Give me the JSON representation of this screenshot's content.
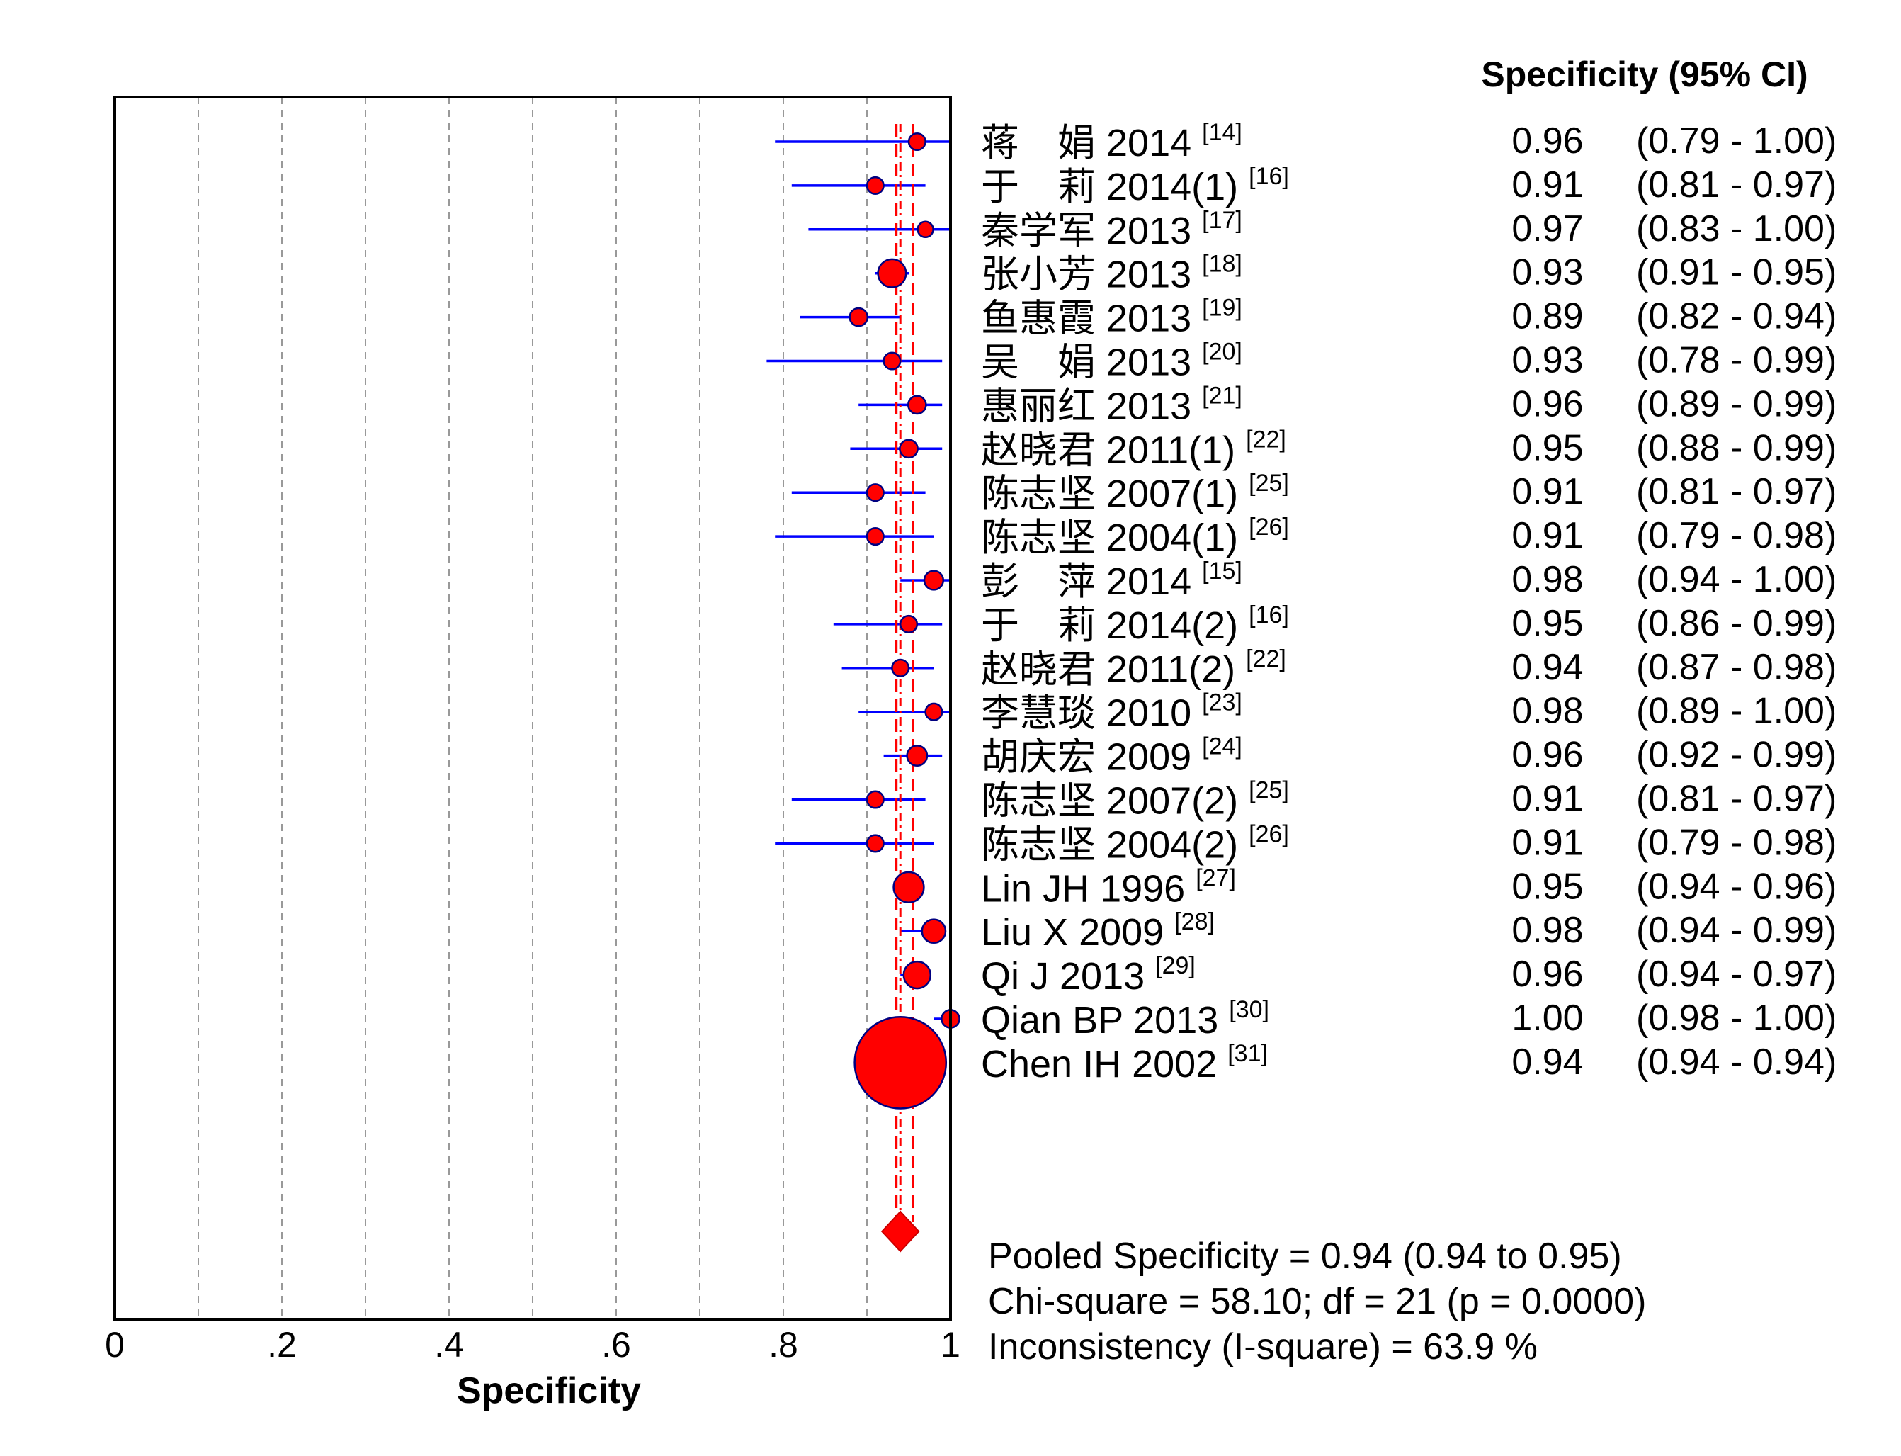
{
  "chart_data": {
    "type": "forest",
    "xlabel": "Specificity",
    "xlim": [
      0,
      1
    ],
    "xticks": [
      "0",
      ".2",
      ".4",
      ".6",
      ".8",
      "1"
    ],
    "grid": "vertical dashed every 0.1",
    "column_header": "Specificity (95% CI)",
    "studies": [
      {
        "label": "蒋　娟 2014",
        "ref": "[14]",
        "est": 0.96,
        "lo": 0.79,
        "hi": 1.0,
        "est_text": "0.96",
        "ci_text": "(0.79 - 1.00)",
        "weight": 0.3
      },
      {
        "label": "于　莉 2014(1)",
        "ref": "[16]",
        "est": 0.91,
        "lo": 0.81,
        "hi": 0.97,
        "est_text": "0.91",
        "ci_text": "(0.81 - 0.97)",
        "weight": 0.3
      },
      {
        "label": "秦学军 2013",
        "ref": "[17]",
        "est": 0.97,
        "lo": 0.83,
        "hi": 1.0,
        "est_text": "0.97",
        "ci_text": "(0.83 - 1.00)",
        "weight": 0.25
      },
      {
        "label": "张小芳 2013",
        "ref": "[18]",
        "est": 0.93,
        "lo": 0.91,
        "hi": 0.95,
        "est_text": "0.93",
        "ci_text": "(0.91 - 0.95)",
        "weight": 0.8
      },
      {
        "label": "鱼惠霞 2013",
        "ref": "[19]",
        "est": 0.89,
        "lo": 0.82,
        "hi": 0.94,
        "est_text": "0.89",
        "ci_text": "(0.82 - 0.94)",
        "weight": 0.35
      },
      {
        "label": "吴　娟 2013",
        "ref": "[20]",
        "est": 0.93,
        "lo": 0.78,
        "hi": 0.99,
        "est_text": "0.93",
        "ci_text": "(0.78 - 0.99)",
        "weight": 0.3
      },
      {
        "label": "惠丽红 2013",
        "ref": "[21]",
        "est": 0.96,
        "lo": 0.89,
        "hi": 0.99,
        "est_text": "0.96",
        "ci_text": "(0.89 - 0.99)",
        "weight": 0.35
      },
      {
        "label": "赵晓君 2011(1)",
        "ref": "[22]",
        "est": 0.95,
        "lo": 0.88,
        "hi": 0.99,
        "est_text": "0.95",
        "ci_text": "(0.88 - 0.99)",
        "weight": 0.35
      },
      {
        "label": "陈志坚 2007(1)",
        "ref": "[25]",
        "est": 0.91,
        "lo": 0.81,
        "hi": 0.97,
        "est_text": "0.91",
        "ci_text": "(0.81 - 0.97)",
        "weight": 0.3
      },
      {
        "label": "陈志坚 2004(1)",
        "ref": "[26]",
        "est": 0.91,
        "lo": 0.79,
        "hi": 0.98,
        "est_text": "0.91",
        "ci_text": "(0.79 - 0.98)",
        "weight": 0.3
      },
      {
        "label": "彭　萍 2014",
        "ref": "[15]",
        "est": 0.98,
        "lo": 0.94,
        "hi": 1.0,
        "est_text": "0.98",
        "ci_text": "(0.94 - 1.00)",
        "weight": 0.4
      },
      {
        "label": "于　莉 2014(2)",
        "ref": "[16]",
        "est": 0.95,
        "lo": 0.86,
        "hi": 0.99,
        "est_text": "0.95",
        "ci_text": "(0.86 - 0.99)",
        "weight": 0.3
      },
      {
        "label": "赵晓君 2011(2)",
        "ref": "[22]",
        "est": 0.94,
        "lo": 0.87,
        "hi": 0.98,
        "est_text": "0.94",
        "ci_text": "(0.87 - 0.98)",
        "weight": 0.3
      },
      {
        "label": "李慧琰 2010",
        "ref": "[23]",
        "est": 0.98,
        "lo": 0.89,
        "hi": 1.0,
        "est_text": "0.98",
        "ci_text": "(0.89 - 1.00)",
        "weight": 0.3
      },
      {
        "label": "胡庆宏 2009",
        "ref": "[24]",
        "est": 0.96,
        "lo": 0.92,
        "hi": 0.99,
        "est_text": "0.96",
        "ci_text": "(0.92 - 0.99)",
        "weight": 0.45
      },
      {
        "label": "陈志坚 2007(2)",
        "ref": "[25]",
        "est": 0.91,
        "lo": 0.81,
        "hi": 0.97,
        "est_text": "0.91",
        "ci_text": "(0.81 - 0.97)",
        "weight": 0.3
      },
      {
        "label": "陈志坚 2004(2)",
        "ref": "[26]",
        "est": 0.91,
        "lo": 0.79,
        "hi": 0.98,
        "est_text": "0.91",
        "ci_text": "(0.79 - 0.98)",
        "weight": 0.3
      },
      {
        "label": "Lin JH 1996",
        "ref": "[27]",
        "est": 0.95,
        "lo": 0.94,
        "hi": 0.96,
        "est_text": "0.95",
        "ci_text": "(0.94 - 0.96)",
        "weight": 0.9
      },
      {
        "label": "Liu X 2009",
        "ref": "[28]",
        "est": 0.98,
        "lo": 0.94,
        "hi": 0.99,
        "est_text": "0.98",
        "ci_text": "(0.94 - 0.99)",
        "weight": 0.6
      },
      {
        "label": "Qi J 2013",
        "ref": "[29]",
        "est": 0.96,
        "lo": 0.94,
        "hi": 0.97,
        "est_text": "0.96",
        "ci_text": "(0.94 - 0.97)",
        "weight": 0.75
      },
      {
        "label": "Qian BP 2013",
        "ref": "[30]",
        "est": 1.0,
        "lo": 0.98,
        "hi": 1.0,
        "est_text": "1.00",
        "ci_text": "(0.98 - 1.00)",
        "weight": 0.35
      },
      {
        "label": "Chen IH 2002",
        "ref": "[31]",
        "est": 0.94,
        "lo": 0.94,
        "hi": 0.94,
        "est_text": "0.94",
        "ci_text": "(0.94 - 0.94)",
        "weight": 3.6
      }
    ],
    "pooled": {
      "est": 0.94,
      "lo": 0.94,
      "hi": 0.95
    },
    "summary_lines": [
      "Pooled Specificity = 0.94 (0.94 to 0.95)",
      "Chi-square = 58.10; df =  21 (p = 0.0000)",
      "Inconsistency (I-square) = 63.9 %"
    ],
    "colors": {
      "point": "#ff0000",
      "ci_line": "#0000ff",
      "pooled": "#ff0000",
      "point_outline": "#000080",
      "grid": "#999999"
    }
  }
}
